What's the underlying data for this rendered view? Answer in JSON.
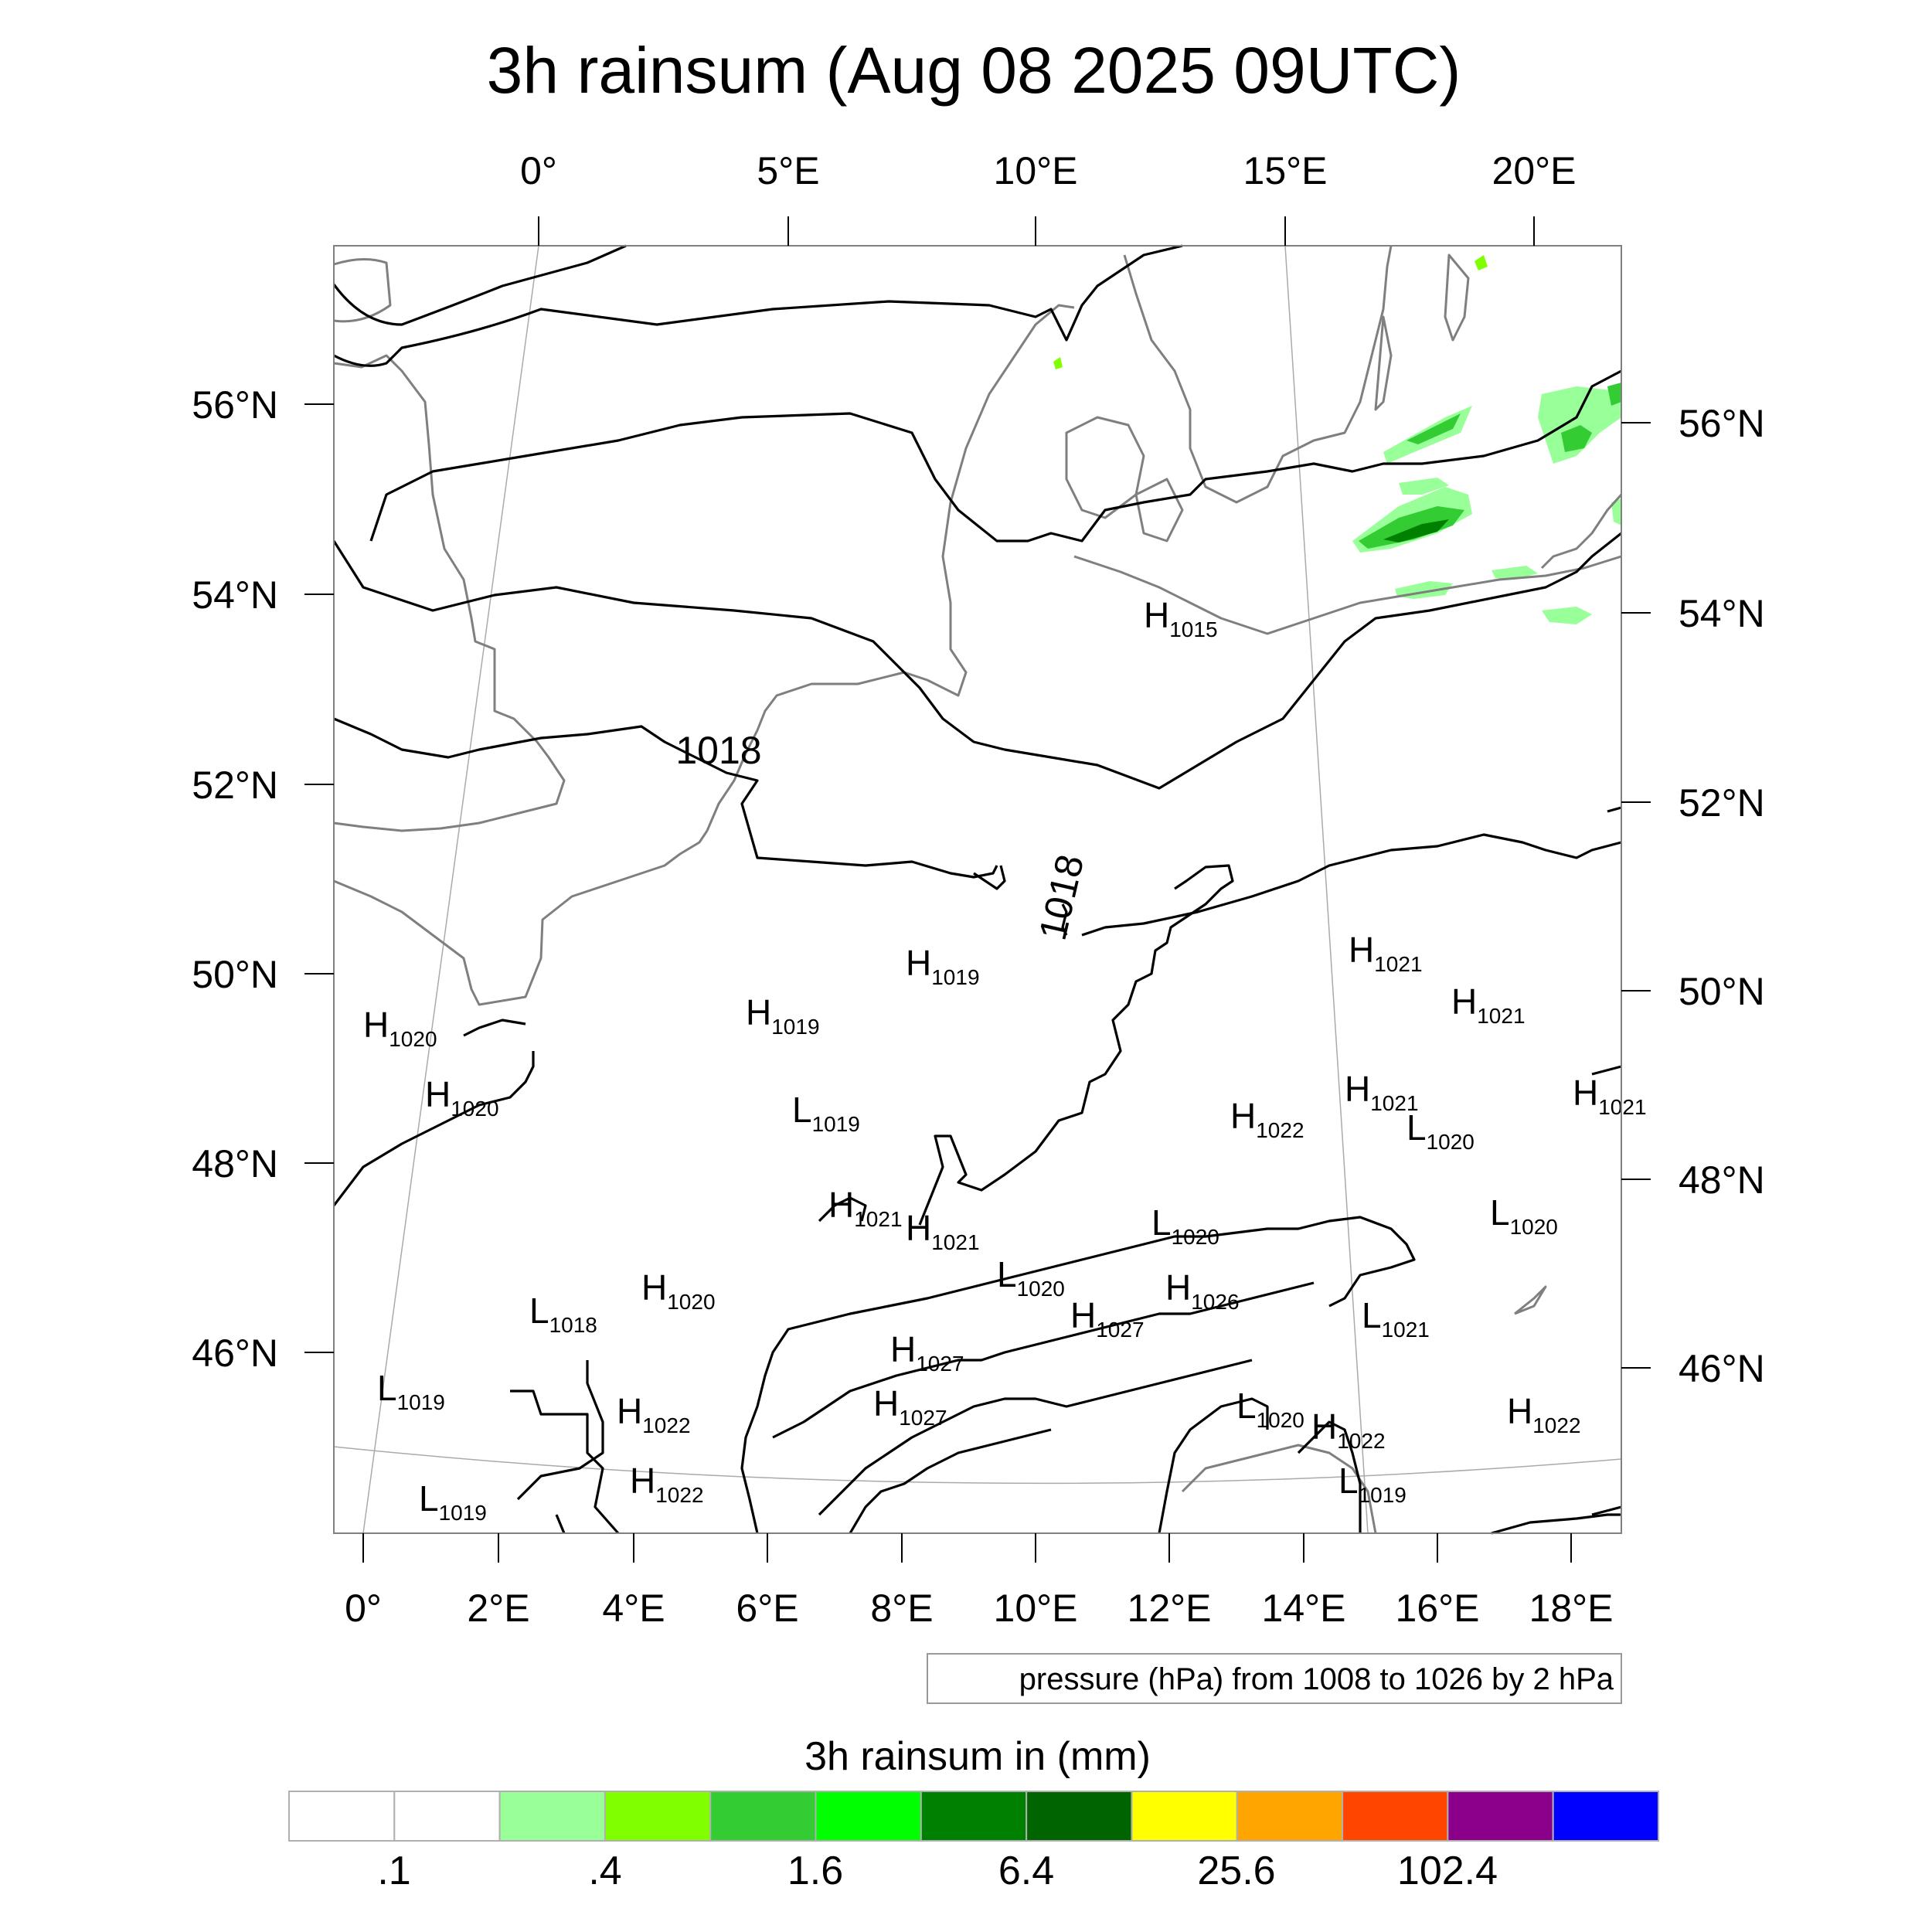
{
  "title": "3h rainsum (Aug 08 2025 09UTC)",
  "top_axis_labels": [
    "0°",
    "5°E",
    "10°E",
    "15°E",
    "20°E"
  ],
  "bottom_axis_labels": [
    "0°",
    "2°E",
    "4°E",
    "6°E",
    "8°E",
    "10°E",
    "12°E",
    "14°E",
    "16°E",
    "18°E"
  ],
  "left_axis_labels": [
    "56°N",
    "54°N",
    "52°N",
    "50°N",
    "48°N",
    "46°N"
  ],
  "right_axis_labels": [
    "56°N",
    "54°N",
    "52°N",
    "50°N",
    "48°N",
    "46°N"
  ],
  "contour_labels": [
    "1018",
    "1018"
  ],
  "pressure_centers": [
    {
      "type": "H",
      "value": "1015"
    },
    {
      "type": "H",
      "value": "1019"
    },
    {
      "type": "H",
      "value": "1019"
    },
    {
      "type": "H",
      "value": "1020"
    },
    {
      "type": "H",
      "value": "1020"
    },
    {
      "type": "L",
      "value": "1019"
    },
    {
      "type": "H",
      "value": "1021"
    },
    {
      "type": "H",
      "value": "1021"
    },
    {
      "type": "H",
      "value": "1021"
    },
    {
      "type": "H",
      "value": "1022"
    },
    {
      "type": "L",
      "value": "1020"
    },
    {
      "type": "H",
      "value": "1021"
    },
    {
      "type": "H",
      "value": "1021"
    },
    {
      "type": "L",
      "value": "1020"
    },
    {
      "type": "L",
      "value": "1020"
    },
    {
      "type": "H",
      "value": "1021"
    },
    {
      "type": "L",
      "value": "1020"
    },
    {
      "type": "H",
      "value": "1026"
    },
    {
      "type": "H",
      "value": "1020"
    },
    {
      "type": "L",
      "value": "1018"
    },
    {
      "type": "H",
      "value": "1027"
    },
    {
      "type": "L",
      "value": "1021"
    },
    {
      "type": "H",
      "value": "1027"
    },
    {
      "type": "H",
      "value": "1027"
    },
    {
      "type": "L",
      "value": "1019"
    },
    {
      "type": "H",
      "value": "1022"
    },
    {
      "type": "L",
      "value": "1020"
    },
    {
      "type": "H",
      "value": "1022"
    },
    {
      "type": "H",
      "value": "1022"
    },
    {
      "type": "H",
      "value": "1022"
    },
    {
      "type": "L",
      "value": "1019"
    },
    {
      "type": "L",
      "value": "1019"
    }
  ],
  "contour_note": "pressure (hPa) from 1008 to 1026 by 2 hPa",
  "colorbar": {
    "title": "3h rainsum in (mm)",
    "colors": [
      "#ffffff",
      "#ffffff",
      "#99ff99",
      "#80ff00",
      "#33cc33",
      "#00ff00",
      "#008000",
      "#006400",
      "#ffff00",
      "#ffa500",
      "#ff4500",
      "#8b008b",
      "#0000ff"
    ],
    "labels": [
      ".1",
      ".4",
      "1.6",
      "6.4",
      "25.6",
      "102.4"
    ]
  },
  "colors": {
    "rain_light": "#99ff99",
    "rain_medium": "#33cc33",
    "rain_heavy": "#008000",
    "coastline": "#7f7f7f",
    "isobar": "#000000"
  }
}
